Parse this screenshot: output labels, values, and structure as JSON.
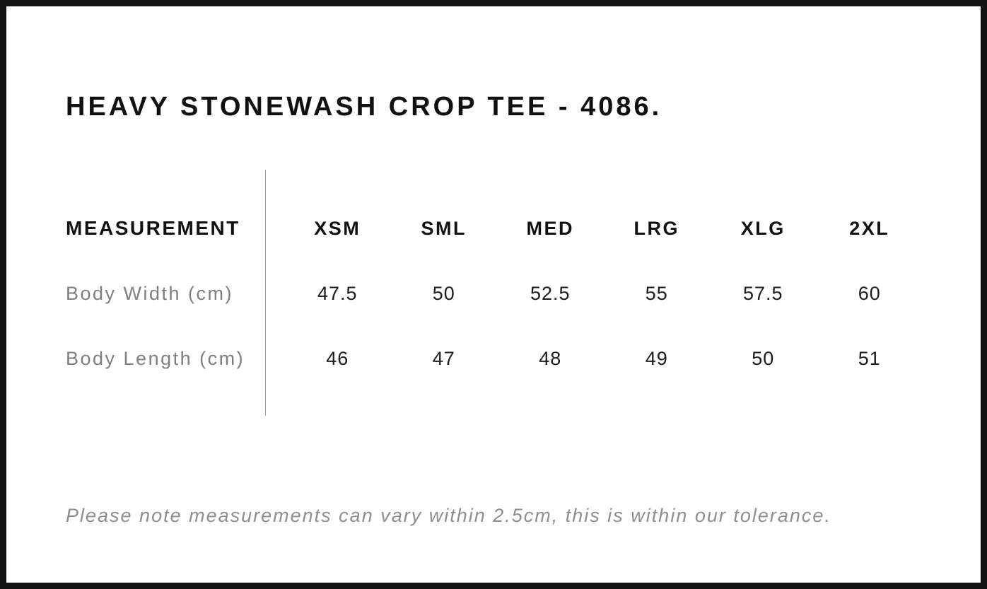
{
  "page": {
    "title": "HEAVY STONEWASH CROP TEE - 4086.",
    "note": "Please note measurements can vary within 2.5cm, this is within our tolerance."
  },
  "size_chart": {
    "header_label": "MEASUREMENT",
    "sizes": [
      "XSM",
      "SML",
      "MED",
      "LRG",
      "XLG",
      "2XL"
    ],
    "rows": [
      {
        "label": "Body Width (cm)",
        "values": [
          "47.5",
          "50",
          "52.5",
          "55",
          "57.5",
          "60"
        ]
      },
      {
        "label": "Body Length (cm)",
        "values": [
          "46",
          "47",
          "48",
          "49",
          "50",
          "51"
        ]
      }
    ]
  },
  "colors": {
    "frame": "#111111",
    "background": "#ffffff",
    "text_primary": "#111111",
    "text_muted": "#7f7f7f",
    "note_text": "#8e8e8e",
    "divider": "#a0a0a0"
  }
}
